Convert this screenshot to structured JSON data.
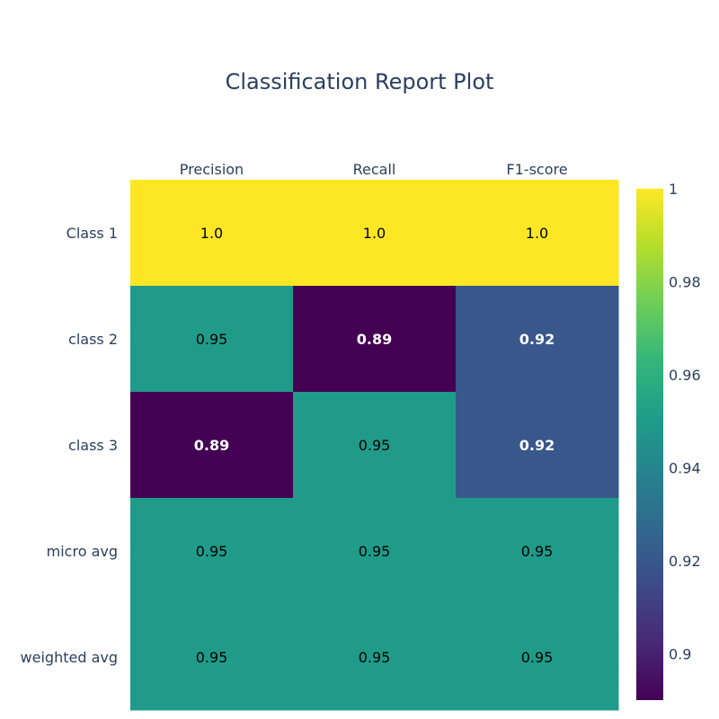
{
  "chart_data": {
    "type": "heatmap",
    "title": "Classification Report Plot",
    "columns": [
      "Precision",
      "Recall",
      "F1-score"
    ],
    "rows": [
      "Class 1",
      "class 2",
      "class 3",
      "micro avg",
      "weighted avg"
    ],
    "values": [
      [
        1.0,
        1.0,
        1.0
      ],
      [
        0.95,
        0.89,
        0.92
      ],
      [
        0.89,
        0.95,
        0.92
      ],
      [
        0.95,
        0.95,
        0.95
      ],
      [
        0.95,
        0.95,
        0.95
      ]
    ],
    "cell_labels": [
      [
        "1.0",
        "1.0",
        "1.0"
      ],
      [
        "0.95",
        "0.89",
        "0.92"
      ],
      [
        "0.89",
        "0.95",
        "0.92"
      ],
      [
        "0.95",
        "0.95",
        "0.95"
      ],
      [
        "0.95",
        "0.95",
        "0.95"
      ]
    ],
    "colorscale": "Viridis",
    "zmin": 0.89,
    "zmax": 1.0,
    "colorbar": {
      "ticks": [
        0.9,
        0.92,
        0.94,
        0.96,
        0.98,
        1
      ],
      "tick_labels": [
        "0.9",
        "0.92",
        "0.94",
        "0.96",
        "0.98",
        "1"
      ]
    },
    "xaxis_side": "top",
    "grid": false
  }
}
